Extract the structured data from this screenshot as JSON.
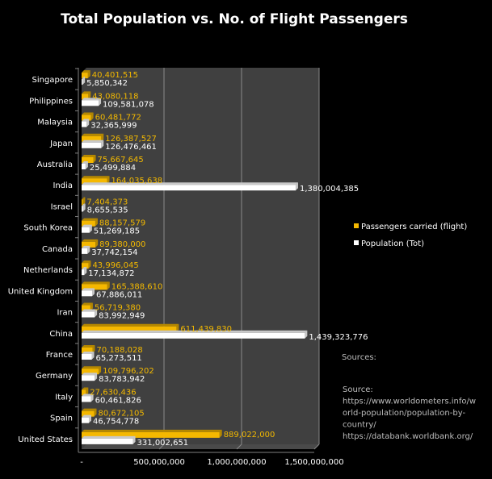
{
  "chart_data": {
    "type": "bar",
    "orientation": "horizontal",
    "title": "Total Population vs. No. of Flight Passengers",
    "xlabel": "",
    "ylabel": "",
    "xlim": [
      0,
      1500000000
    ],
    "x_ticks": [
      "-",
      "500,000,000",
      "1,000,000,000",
      "1,500,000,000"
    ],
    "x_tick_values": [
      0,
      500000000,
      1000000000,
      1500000000
    ],
    "grid": true,
    "legend_position": "right",
    "categories": [
      "Singapore",
      "Philippines",
      "Malaysia",
      "Japan",
      "Australia",
      "India",
      "Israel",
      "South Korea",
      "Canada",
      "Netherlands",
      "United Kingdom",
      "Iran",
      "China",
      "France",
      "Germany",
      "Italy",
      "Spain",
      "United States"
    ],
    "series": [
      {
        "name": "Passengers carried (flight)",
        "color": "#f5b800",
        "values": [
          40401515,
          43080118,
          60481772,
          126387527,
          75667645,
          164035638,
          7404373,
          88157579,
          89380000,
          43996045,
          165388610,
          56719380,
          611439830,
          70188028,
          109796202,
          27630436,
          80672105,
          889022000
        ],
        "labels": [
          "40,401,515",
          "43,080,118",
          "60,481,772",
          "126,387,527",
          "75,667,645",
          "164,035,638",
          "7,404,373",
          "88,157,579",
          "89,380,000",
          "43,996,045",
          "165,388,610",
          "56,719,380",
          "611,439,830",
          "70,188,028",
          "109,796,202",
          "27,630,436",
          "80,672,105",
          "889,022,000"
        ]
      },
      {
        "name": "Population (Tot)",
        "color": "#ffffff",
        "values": [
          5850342,
          109581078,
          32365999,
          126476461,
          25499884,
          1380004385,
          8655535,
          51269185,
          37742154,
          17134872,
          67886011,
          83992949,
          1439323776,
          65273511,
          83783942,
          60461826,
          46754778,
          331002651
        ],
        "labels": [
          "5,850,342",
          "109,581,078",
          "32,365,999",
          "126,476,461",
          "25,499,884",
          "1,380,004,385",
          "8,655,535",
          "51,269,185",
          "37,742,154",
          "17,134,872",
          "67,886,011",
          "83,992,949",
          "1,439,323,776",
          "65,273,511",
          "83,783,942",
          "60,461,826",
          "46,754,778",
          "331,002,651"
        ]
      }
    ],
    "annotations": {
      "sources_heading": "Sources:",
      "source_lines": [
        "Source:",
        "https://www.worldometers.info/w",
        "orld-population/population-by-",
        "country/",
        "https://databank.worldbank.org/"
      ]
    }
  }
}
